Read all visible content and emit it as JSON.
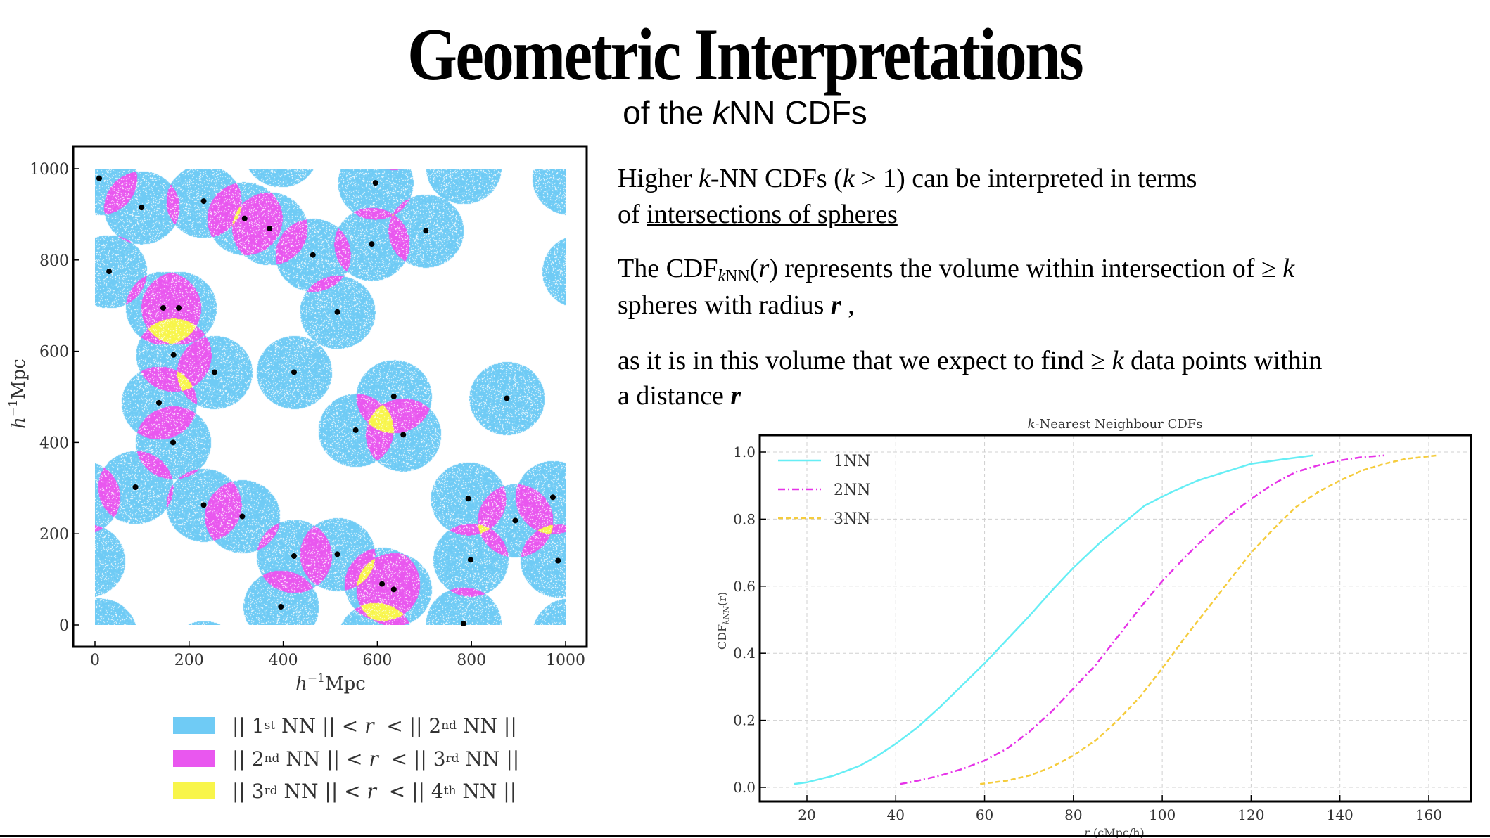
{
  "slide": {
    "title": "Geometric Interpretations",
    "subtitle_pre": "of the ",
    "subtitle_k": "k",
    "subtitle_post": "NN CDFs"
  },
  "body": {
    "p1": [
      "Higher ",
      "k",
      "-NN CDFs (",
      "k",
      " > 1) can be interpreted in terms"
    ],
    "p1b": [
      "of ",
      "intersections of spheres"
    ],
    "p2": [
      "The CDF",
      "k",
      "NN",
      "(",
      "r",
      ") represents the volume within intersection of ",
      "≥",
      " ",
      "k"
    ],
    "p2b": [
      "spheres with radius ",
      "r",
      " ,"
    ],
    "p3": [
      "as it is in this volume that we expect to find ",
      "≥",
      " ",
      "k",
      " data points within"
    ],
    "p3b": [
      "a distance ",
      "r"
    ]
  },
  "legend_left": [
    {
      "color": "#6fcbf5",
      "parts": [
        "|| 1",
        "st",
        " NN || < ",
        "r",
        "  < || 2",
        "nd",
        " NN ||"
      ]
    },
    {
      "color": "#e957ef",
      "parts": [
        "|| 2",
        "nd",
        " NN || < ",
        "r",
        "  < || 3",
        "rd",
        " NN ||"
      ]
    },
    {
      "color": "#f8f54a",
      "parts": [
        "|| 3",
        "rd",
        " NN || < ",
        "r",
        "  < || 4",
        "th",
        " NN ||"
      ]
    }
  ],
  "chart_data": [
    {
      "type": "scatter",
      "title": "",
      "xlabel": {
        "h": "h",
        "exp": "−1",
        "unit": "Mpc"
      },
      "ylabel": {
        "h": "h",
        "exp": "−1",
        "unit": "Mpc"
      },
      "xlim": [
        0,
        1000
      ],
      "ylim": [
        0,
        1000
      ],
      "x_ticks": [
        "0",
        "200",
        "400",
        "600",
        "800",
        "1000"
      ],
      "y_ticks": [
        "0",
        "200",
        "400",
        "600",
        "800",
        "1000"
      ],
      "sphere_radius": 80,
      "periodic": true,
      "region_colors": {
        "one": "#6fcbf5",
        "two": "#e957ef",
        "three": "#f8f54a"
      },
      "points": [
        [
          9,
          979
        ],
        [
          99,
          915
        ],
        [
          231,
          929
        ],
        [
          318,
          891
        ],
        [
          371,
          869
        ],
        [
          463,
          811
        ],
        [
          588,
          835
        ],
        [
          703,
          864
        ],
        [
          596,
          969
        ],
        [
          30,
          775
        ],
        [
          145,
          695
        ],
        [
          178,
          695
        ],
        [
          515,
          686
        ],
        [
          167,
          592
        ],
        [
          254,
          554
        ],
        [
          423,
          554
        ],
        [
          136,
          487
        ],
        [
          166,
          400
        ],
        [
          635,
          501
        ],
        [
          554,
          427
        ],
        [
          655,
          417
        ],
        [
          875,
          497
        ],
        [
          86,
          302
        ],
        [
          231,
          263
        ],
        [
          313,
          238
        ],
        [
          423,
          151
        ],
        [
          515,
          155
        ],
        [
          395,
          40
        ],
        [
          610,
          90
        ],
        [
          635,
          78
        ],
        [
          793,
          277
        ],
        [
          798,
          143
        ],
        [
          893,
          229
        ],
        [
          973,
          280
        ],
        [
          984,
          141
        ],
        [
          783,
          3
        ]
      ]
    },
    {
      "type": "line",
      "title_k": "k",
      "title_rest": "-Nearest Neighbour CDFs",
      "xlabel": {
        "r": "r",
        "unit": " (cMpc/h)"
      },
      "ylabel": {
        "base": "CDF",
        "sub": "kNN",
        "arg": "(r)"
      },
      "xlim": [
        9,
        170
      ],
      "ylim": [
        -0.045,
        1.05
      ],
      "grid": true,
      "legend_placement": "top-left",
      "x_ticks": [
        20,
        40,
        60,
        80,
        100,
        120,
        140,
        160
      ],
      "y_ticks": [
        0.0,
        0.2,
        0.4,
        0.6,
        0.8,
        1.0
      ],
      "y_tick_labels": [
        "0.0",
        "0.2",
        "0.4",
        "0.6",
        "0.8",
        "1.0"
      ],
      "series": [
        {
          "name": "1NN",
          "color": "#66eef5",
          "style": "solid",
          "x": [
            17,
            20,
            26,
            32,
            36,
            40,
            45,
            50,
            55,
            60,
            65,
            70,
            75,
            80,
            86,
            91,
            96,
            102,
            108,
            114,
            120,
            127,
            134
          ],
          "y": [
            0.01,
            0.015,
            0.035,
            0.065,
            0.095,
            0.13,
            0.18,
            0.24,
            0.305,
            0.37,
            0.44,
            0.51,
            0.585,
            0.655,
            0.73,
            0.785,
            0.84,
            0.88,
            0.915,
            0.94,
            0.965,
            0.978,
            0.99
          ]
        },
        {
          "name": "2NN",
          "color": "#e633e8",
          "style": "dashdot",
          "x": [
            41,
            45,
            50,
            55,
            60,
            65,
            70,
            75,
            80,
            85,
            90,
            95,
            100,
            105,
            110,
            115,
            120,
            125,
            130,
            135,
            140,
            145,
            150
          ],
          "y": [
            0.01,
            0.02,
            0.035,
            0.055,
            0.08,
            0.115,
            0.165,
            0.225,
            0.295,
            0.365,
            0.45,
            0.535,
            0.615,
            0.685,
            0.75,
            0.81,
            0.86,
            0.905,
            0.94,
            0.96,
            0.975,
            0.985,
            0.99
          ]
        },
        {
          "name": "3NN",
          "color": "#f5cc3c",
          "style": "dashed",
          "x": [
            59,
            65,
            70,
            75,
            80,
            85,
            90,
            95,
            100,
            105,
            110,
            115,
            120,
            125,
            130,
            135,
            140,
            145,
            150,
            155,
            162
          ],
          "y": [
            0.01,
            0.02,
            0.035,
            0.06,
            0.095,
            0.14,
            0.2,
            0.27,
            0.355,
            0.445,
            0.53,
            0.615,
            0.7,
            0.77,
            0.835,
            0.88,
            0.915,
            0.945,
            0.965,
            0.98,
            0.99
          ]
        }
      ]
    }
  ]
}
